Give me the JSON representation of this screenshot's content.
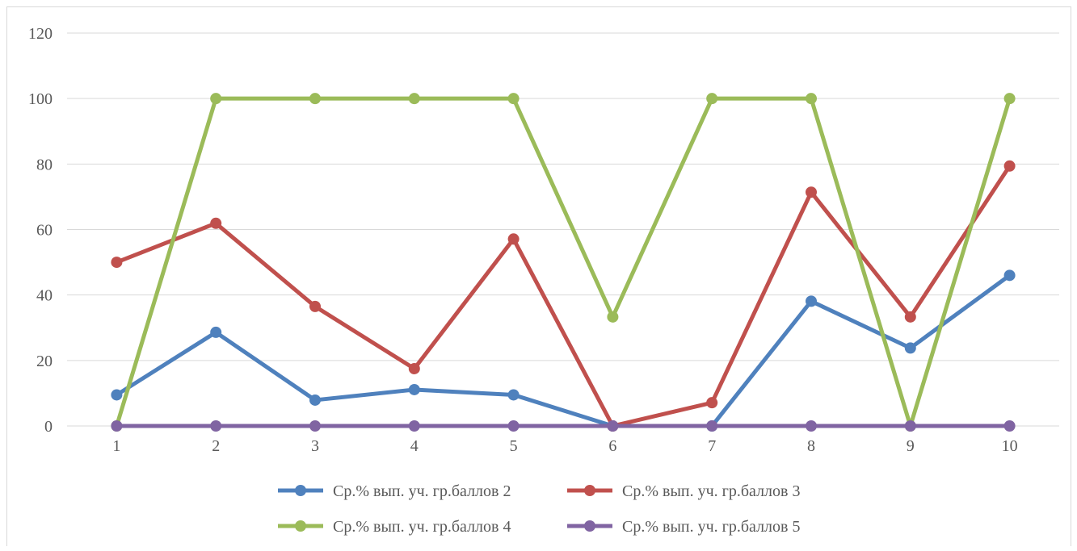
{
  "chart_data": {
    "type": "line",
    "x": [
      1,
      2,
      3,
      4,
      5,
      6,
      7,
      8,
      9,
      10
    ],
    "ylim": [
      0,
      120
    ],
    "yticks": [
      0,
      20,
      40,
      60,
      80,
      100,
      120
    ],
    "grid": true,
    "legend_position": "bottom",
    "series": [
      {
        "name": "Ср.% вып. уч. гр.баллов 2",
        "color": "#4f81bd",
        "values": [
          9.5,
          28.6,
          7.9,
          11.1,
          9.5,
          0,
          0,
          38.1,
          23.8,
          46.0
        ]
      },
      {
        "name": "Ср.% вып. уч. гр.баллов 3",
        "color": "#c0504d",
        "values": [
          50,
          61.9,
          36.5,
          17.5,
          57.1,
          0,
          7.1,
          71.4,
          33.3,
          79.4
        ]
      },
      {
        "name": "Ср.% вып. уч. гр.баллов 4",
        "color": "#9bbb59",
        "values": [
          0,
          100,
          100,
          100,
          100,
          33.3,
          100,
          100,
          0,
          100
        ]
      },
      {
        "name": "Ср.% вып. уч. гр.баллов 5",
        "color": "#8064a2",
        "values": [
          0,
          0,
          0,
          0,
          0,
          0,
          0,
          0,
          0,
          0
        ]
      }
    ]
  }
}
